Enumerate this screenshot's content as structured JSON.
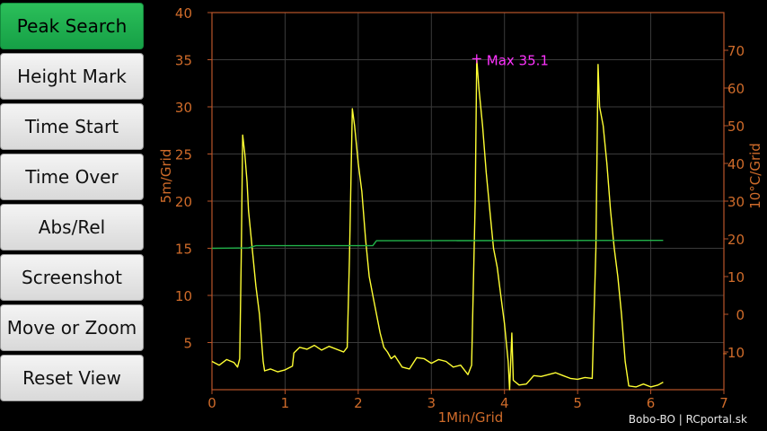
{
  "sidebar": {
    "items": [
      {
        "label": "Peak Search",
        "active": true
      },
      {
        "label": "Height Mark",
        "active": false
      },
      {
        "label": "Time Start",
        "active": false
      },
      {
        "label": "Time Over",
        "active": false
      },
      {
        "label": "Abs/Rel",
        "active": false
      },
      {
        "label": "Screenshot",
        "active": false
      },
      {
        "label": "Move or Zoom",
        "active": false
      },
      {
        "label": "Reset View",
        "active": false
      }
    ]
  },
  "credit": "Bobo-BO | RCportal.sk",
  "chart_data": {
    "type": "line",
    "xlabel": "1Min/Grid",
    "ylabel": "5m/Grid",
    "y2label": "10°C/Grid",
    "xlim": [
      0,
      7
    ],
    "ylim": [
      0,
      40
    ],
    "y2lim": [
      -20,
      80
    ],
    "x_ticks": [
      "0",
      "1",
      "2",
      "3",
      "4",
      "5",
      "6",
      "7"
    ],
    "y_ticks": [
      "5",
      "10",
      "15",
      "20",
      "25",
      "30",
      "35",
      "40"
    ],
    "y2_ticks": [
      "-10",
      "0",
      "10",
      "20",
      "30",
      "40",
      "50",
      "60",
      "70"
    ],
    "grid": true,
    "annotation": {
      "text": "Max 35.1",
      "x": 3.62,
      "y": 35.1,
      "color": "#ff33ff"
    },
    "series": [
      {
        "name": "",
        "axis": "left",
        "color": "#ffff33",
        "points": [
          [
            0,
            3
          ],
          [
            0.1,
            2.6
          ],
          [
            0.2,
            3.2
          ],
          [
            0.3,
            2.9
          ],
          [
            0.35,
            2.4
          ],
          [
            0.38,
            3.3
          ],
          [
            0.4,
            14
          ],
          [
            0.42,
            27
          ],
          [
            0.45,
            25
          ],
          [
            0.48,
            22
          ],
          [
            0.5,
            19
          ],
          [
            0.55,
            15
          ],
          [
            0.6,
            11
          ],
          [
            0.65,
            8
          ],
          [
            0.7,
            3
          ],
          [
            0.72,
            2
          ],
          [
            0.8,
            2.2
          ],
          [
            0.9,
            1.9
          ],
          [
            1.0,
            2.1
          ],
          [
            1.1,
            2.5
          ],
          [
            1.12,
            3.9
          ],
          [
            1.2,
            4.5
          ],
          [
            1.3,
            4.3
          ],
          [
            1.4,
            4.7
          ],
          [
            1.5,
            4.2
          ],
          [
            1.6,
            4.6
          ],
          [
            1.8,
            4
          ],
          [
            1.85,
            4.5
          ],
          [
            1.88,
            14
          ],
          [
            1.92,
            29.8
          ],
          [
            1.95,
            28
          ],
          [
            2.0,
            24
          ],
          [
            2.05,
            21
          ],
          [
            2.1,
            16
          ],
          [
            2.15,
            12
          ],
          [
            2.2,
            10
          ],
          [
            2.25,
            8
          ],
          [
            2.3,
            6
          ],
          [
            2.35,
            4.5
          ],
          [
            2.4,
            4
          ],
          [
            2.45,
            3.3
          ],
          [
            2.5,
            3.6
          ],
          [
            2.6,
            2.4
          ],
          [
            2.7,
            2.2
          ],
          [
            2.8,
            3.4
          ],
          [
            2.9,
            3.3
          ],
          [
            3.0,
            2.8
          ],
          [
            3.1,
            3.2
          ],
          [
            3.2,
            3.0
          ],
          [
            3.3,
            2.4
          ],
          [
            3.4,
            2.6
          ],
          [
            3.5,
            1.6
          ],
          [
            3.55,
            2.6
          ],
          [
            3.6,
            20
          ],
          [
            3.62,
            35.1
          ],
          [
            3.65,
            32
          ],
          [
            3.7,
            28
          ],
          [
            3.75,
            23
          ],
          [
            3.8,
            19
          ],
          [
            3.85,
            15
          ],
          [
            3.9,
            13
          ],
          [
            3.95,
            10
          ],
          [
            4.0,
            7
          ],
          [
            4.05,
            3
          ],
          [
            4.07,
            0
          ],
          [
            4.1,
            6
          ],
          [
            4.12,
            1
          ],
          [
            4.2,
            0.5
          ],
          [
            4.3,
            0.6
          ],
          [
            4.4,
            1.5
          ],
          [
            4.5,
            1.4
          ],
          [
            4.6,
            1.6
          ],
          [
            4.7,
            1.8
          ],
          [
            4.8,
            1.5
          ],
          [
            4.9,
            1.2
          ],
          [
            5.0,
            1.1
          ],
          [
            5.1,
            1.3
          ],
          [
            5.2,
            1.2
          ],
          [
            5.25,
            15
          ],
          [
            5.28,
            34.5
          ],
          [
            5.3,
            30
          ],
          [
            5.35,
            28
          ],
          [
            5.4,
            24
          ],
          [
            5.45,
            19
          ],
          [
            5.5,
            15
          ],
          [
            5.55,
            12
          ],
          [
            5.6,
            8
          ],
          [
            5.65,
            3
          ],
          [
            5.7,
            0.4
          ],
          [
            5.8,
            0.3
          ],
          [
            5.9,
            0.6
          ],
          [
            6.0,
            0.3
          ],
          [
            6.1,
            0.5
          ],
          [
            6.17,
            0.8
          ]
        ]
      },
      {
        "name": "",
        "axis": "right",
        "color": "#22b34a",
        "points": [
          [
            0,
            17.5
          ],
          [
            0.5,
            17.6
          ],
          [
            0.6,
            18.2
          ],
          [
            2.2,
            18.2
          ],
          [
            2.25,
            19.5
          ],
          [
            6.17,
            19.6
          ]
        ]
      }
    ]
  }
}
